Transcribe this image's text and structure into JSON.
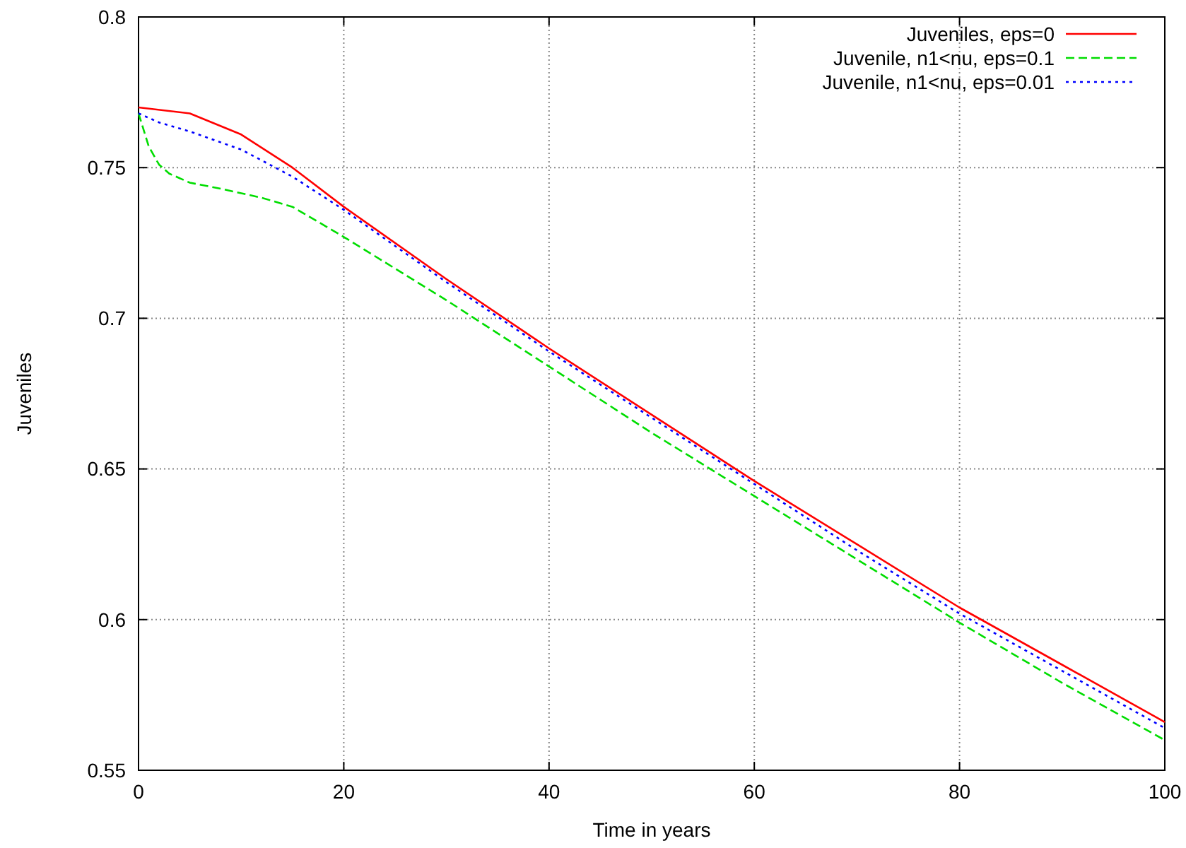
{
  "chart_data": {
    "type": "line",
    "xlabel": "Time in years",
    "ylabel": "Juveniles",
    "xlim": [
      0,
      100
    ],
    "ylim": [
      0.55,
      0.8
    ],
    "xticks": [
      0,
      20,
      40,
      60,
      80,
      100
    ],
    "yticks": [
      0.55,
      0.6,
      0.65,
      0.7,
      0.75,
      0.8
    ],
    "grid": true,
    "legend": "top right",
    "series": [
      {
        "name": "Juveniles, eps=0",
        "color": "#ff0000",
        "line_style": "solid",
        "x": [
          0,
          5,
          10,
          15,
          20,
          30,
          40,
          50,
          60,
          70,
          80,
          90,
          100
        ],
        "values": [
          0.77,
          0.768,
          0.761,
          0.75,
          0.737,
          0.713,
          0.69,
          0.668,
          0.646,
          0.625,
          0.604,
          0.585,
          0.566
        ]
      },
      {
        "name": "Juvenile, n1<nu, eps=0.1",
        "color": "#00dd00",
        "line_style": "dashed",
        "x": [
          0,
          1,
          2,
          3,
          5,
          8,
          12,
          15,
          20,
          30,
          40,
          50,
          60,
          70,
          80,
          90,
          100
        ],
        "values": [
          0.768,
          0.757,
          0.751,
          0.748,
          0.745,
          0.743,
          0.74,
          0.737,
          0.727,
          0.706,
          0.684,
          0.662,
          0.641,
          0.62,
          0.599,
          0.579,
          0.56
        ]
      },
      {
        "name": "Juvenile, n1<nu, eps=0.01",
        "color": "#0000ff",
        "line_style": "dotted",
        "x": [
          0,
          2,
          5,
          10,
          15,
          20,
          30,
          40,
          50,
          60,
          70,
          80,
          90,
          100
        ],
        "values": [
          0.768,
          0.765,
          0.762,
          0.756,
          0.747,
          0.736,
          0.712,
          0.689,
          0.667,
          0.645,
          0.623,
          0.602,
          0.583,
          0.564
        ]
      }
    ]
  }
}
